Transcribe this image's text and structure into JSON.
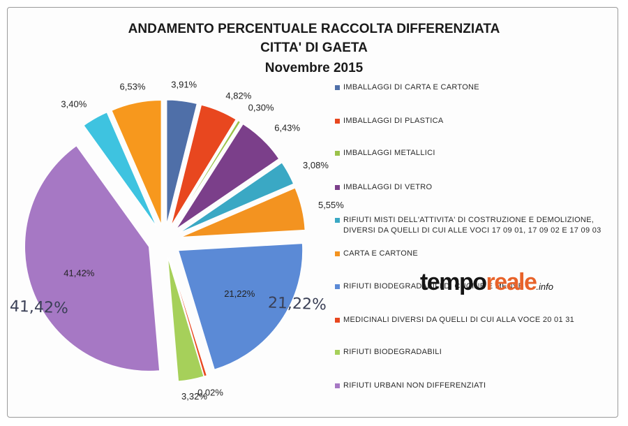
{
  "title_lines": [
    "ANDAMENTO PERCENTUALE RACCOLTA DIFFERENZIATA",
    "CITTA' DI GAETA",
    "Novembre 2015"
  ],
  "chart_data": {
    "type": "pie",
    "title": "ANDAMENTO PERCENTUALE RACCOLTA DIFFERENZIATA CITTA' DI GAETA Novembre 2015",
    "exploded": true,
    "legend_position": "right",
    "slices": [
      {
        "name": "IMBALLAGGI DI CARTA E CARTONE",
        "value": 3.91,
        "label": "3,91%",
        "color": "#4f6fa8"
      },
      {
        "name": "IMBALLAGGI DI PLASTICA",
        "value": 4.82,
        "label": "4,82%",
        "color": "#e8471f"
      },
      {
        "name": "IMBALLAGGI METALLICI",
        "value": 0.3,
        "label": "0,30%",
        "color": "#9bc24a"
      },
      {
        "name": "IMBALLAGGI DI VETRO",
        "value": 6.43,
        "label": "6,43%",
        "color": "#7b3f8a"
      },
      {
        "name": "RIFIUTI MISTI DELL'ATTIVITA' DI COSTRUZIONE E DEMOLIZIONE, DIVERSI DA QUELLI DI CUI ALLE VOCI 17 09 01, 17 09 02 E 17 09 03",
        "value": 3.08,
        "label": "3,08%",
        "color": "#3aa8c4"
      },
      {
        "name": "CARTA E CARTONE",
        "value": 5.55,
        "label": "5,55%",
        "color": "#f39320"
      },
      {
        "name": "RIFIUTI BIODEGRADABILI DI CUCINE E MENSE",
        "value": 21.22,
        "label": "21,22%",
        "color": "#5b8ad6"
      },
      {
        "name": "MEDICINALI DIVERSI DA QUELLI DI CUI ALLA VOCE 20 01 31",
        "value": 0.02,
        "label": "0,02%",
        "color": "#e8471f"
      },
      {
        "name": "RIFIUTI BIODEGRADABILI",
        "value": 3.32,
        "label": "3,32%",
        "color": "#a6d05a"
      },
      {
        "name": "RIFIUTI URBANI NON DIFFERENZIATI",
        "value": 41.42,
        "label": "41,42%",
        "color": "#a678c4"
      },
      {
        "name": "RIFIUTI MISTI DELL'ATTIVITA' DI COSTRUZIONE E DEMOLIZIONE, DIVERSI DA QUELLI DI CUI ALLE VOCI 17 09 01, 17 09 02 E 17 09 03",
        "value": 3.4,
        "label": "3,40%",
        "color": "#3ec3e0"
      },
      {
        "name": "CARTA E CARTONE",
        "value": 6.53,
        "label": "6,53%",
        "color": "#f7981d"
      }
    ],
    "legend": [
      {
        "label": "IMBALLAGGI DI CARTA E CARTONE",
        "color": "#4f6fa8"
      },
      {
        "label": "IMBALLAGGI DI PLASTICA",
        "color": "#e8471f"
      },
      {
        "label": "IMBALLAGGI METALLICI",
        "color": "#9bc24a"
      },
      {
        "label": "IMBALLAGGI DI VETRO",
        "color": "#7b3f8a"
      },
      {
        "label": "RIFIUTI MISTI DELL'ATTIVITA' DI COSTRUZIONE E DEMOLIZIONE, DIVERSI DA QUELLI DI CUI ALLE VOCI 17 09 01, 17 09 02 E 17 09 03",
        "color": "#3aa8c4"
      },
      {
        "label": "CARTA E CARTONE",
        "color": "#f39320"
      },
      {
        "label": "RIFIUTI BIODEGRADABILI DI CUCINE E MENSE",
        "color": "#5b8ad6"
      },
      {
        "label": "MEDICINALI DIVERSI DA QUELLI DI CUI ALLA VOCE 20 01 31",
        "color": "#e8471f"
      },
      {
        "label": "RIFIUTI BIODEGRADABILI",
        "color": "#a6d05a"
      },
      {
        "label": "RIFIUTI URBANI NON DIFFERENZIATI",
        "color": "#a678c4"
      }
    ]
  },
  "watermark": {
    "main": "tempo",
    "accent": "reale",
    "tld": ".info"
  },
  "handwritten": {
    "left": "41,42%",
    "right": "21,22%"
  }
}
